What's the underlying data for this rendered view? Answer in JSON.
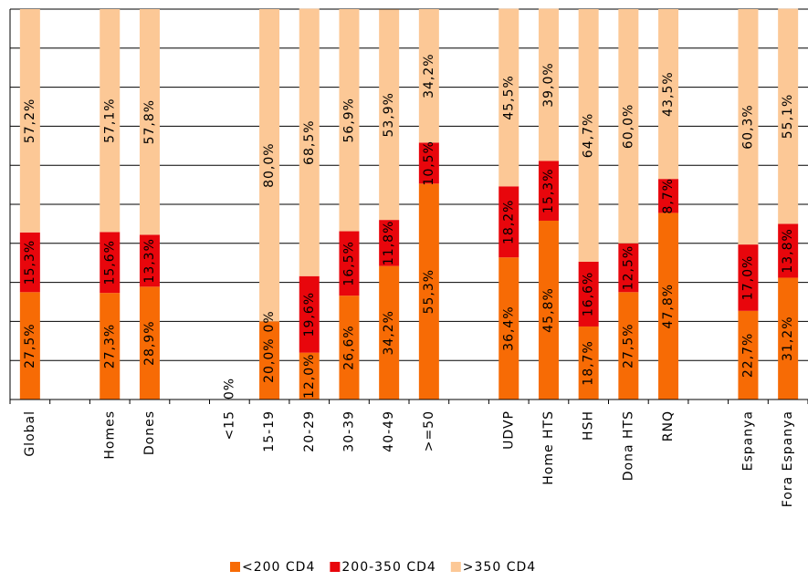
{
  "chart_data": {
    "type": "stacked_bar",
    "categories": [
      "Global",
      null,
      "Homes",
      "Dones",
      null,
      "<15",
      "15-19",
      "20-29",
      "30-39",
      "40-49",
      ">=50",
      null,
      "UDVP",
      "Home HTS",
      "HSH",
      "Dona HTS",
      "RNQ",
      null,
      "Espanya",
      "Fora Espanya"
    ],
    "series": [
      {
        "name": "<200 CD4",
        "color": "#f76b05",
        "values": [
          27.5,
          null,
          27.3,
          28.9,
          null,
          0,
          20.0,
          12.0,
          26.6,
          34.2,
          55.3,
          null,
          36.4,
          45.8,
          18.7,
          27.5,
          47.8,
          null,
          22.7,
          31.2
        ],
        "value_labels": [
          "27,5%",
          null,
          "27,3%",
          "28,9%",
          null,
          "0%",
          "20,0%",
          "12,0%",
          "26,6%",
          "34,2%",
          "55,3%",
          null,
          "36,4%",
          "45,8%",
          "18,7%",
          "27,5%",
          "47,8%",
          null,
          "22,7%",
          "31,2%"
        ]
      },
      {
        "name": "200-350 CD4",
        "color": "#e8060c",
        "values": [
          15.3,
          null,
          15.6,
          13.3,
          null,
          0,
          0,
          19.6,
          16.5,
          11.8,
          10.5,
          null,
          18.2,
          15.3,
          16.6,
          12.5,
          8.7,
          null,
          17.0,
          13.8
        ],
        "value_labels": [
          "15,3%",
          null,
          "15,6%",
          "13,3%",
          null,
          null,
          "0%",
          "19,6%",
          "16,5%",
          "11,8%",
          "10,5%",
          null,
          "18,2%",
          "15,3%",
          "16,6%",
          "12,5%",
          "8,7%",
          null,
          "17,0%",
          "13,8%"
        ]
      },
      {
        "name": ">350 CD4",
        "color": "#fcc896",
        "values": [
          57.2,
          null,
          57.1,
          57.8,
          null,
          0,
          80.0,
          68.5,
          56.9,
          53.9,
          34.2,
          null,
          45.5,
          39.0,
          64.7,
          60.0,
          43.5,
          null,
          60.3,
          55.1
        ],
        "value_labels": [
          "57,2%",
          null,
          "57,1%",
          "57,8%",
          null,
          null,
          "80,0%",
          "68,5%",
          "56,9%",
          "53,9%",
          "34,2%",
          null,
          "45,5%",
          "39,0%",
          "64,7%",
          "60,0%",
          "43,5%",
          null,
          "60,3%",
          "55,1%"
        ]
      }
    ],
    "ylim": [
      0,
      100
    ],
    "yticks": [
      0,
      10,
      20,
      30,
      40,
      50,
      60,
      70,
      80,
      90,
      100
    ],
    "grid": true
  }
}
